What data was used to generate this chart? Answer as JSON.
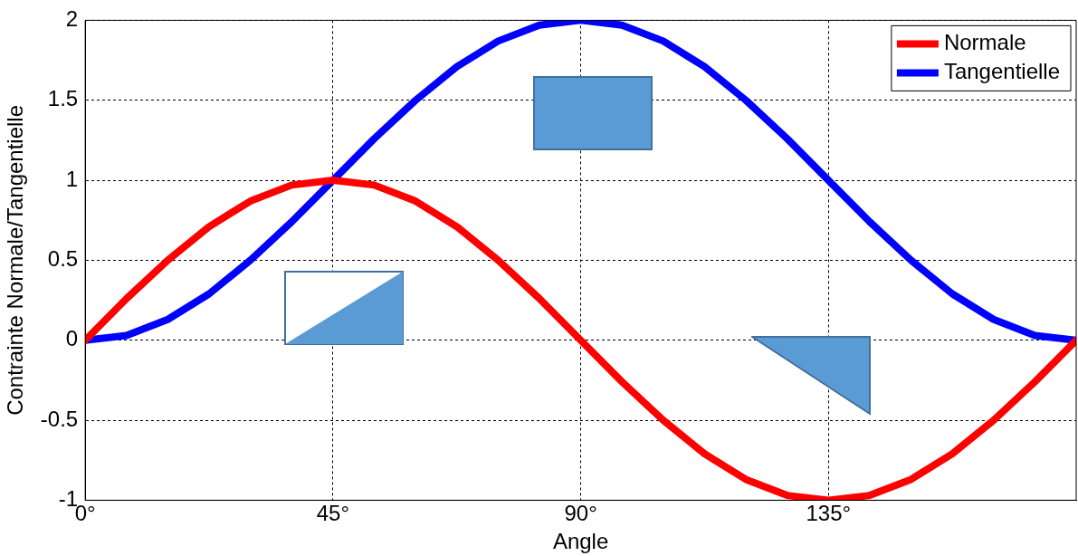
{
  "chart_data": {
    "type": "line",
    "xlabel": "Angle",
    "ylabel": "Contrainte Normale/Tangentielle",
    "x": [
      0,
      7.5,
      15,
      22.5,
      30,
      37.5,
      45,
      52.5,
      60,
      67.5,
      75,
      82.5,
      90,
      97.5,
      105,
      112.5,
      120,
      127.5,
      135,
      142.5,
      150,
      157.5,
      165,
      172.5,
      180
    ],
    "series": [
      {
        "name": "Normale",
        "color": "#ff0000",
        "values": [
          0,
          0.26,
          0.5,
          0.71,
          0.87,
          0.97,
          1,
          0.97,
          0.87,
          0.71,
          0.5,
          0.26,
          0,
          -0.26,
          -0.5,
          -0.71,
          -0.87,
          -0.97,
          -1,
          -0.97,
          -0.87,
          -0.71,
          -0.5,
          -0.26,
          0
        ]
      },
      {
        "name": "Tangentielle",
        "color": "#0000ff",
        "values": [
          0,
          0.03,
          0.13,
          0.29,
          0.5,
          0.74,
          1,
          1.26,
          1.5,
          1.71,
          1.87,
          1.97,
          2,
          1.97,
          1.87,
          1.71,
          1.5,
          1.26,
          1,
          0.74,
          0.5,
          0.29,
          0.13,
          0.03,
          0
        ]
      }
    ],
    "xlim": [
      0,
      180
    ],
    "xticks": [
      {
        "value": 0,
        "label": "0°"
      },
      {
        "value": 45,
        "label": "45°"
      },
      {
        "value": 90,
        "label": "90°"
      },
      {
        "value": 135,
        "label": "135°"
      }
    ],
    "ylim": [
      -1,
      2
    ],
    "yticks": [
      -1,
      -0.5,
      0,
      0.5,
      1,
      1.5,
      2
    ],
    "grid": true,
    "legend": "top right",
    "marker": "none",
    "line_style": "solid"
  }
}
